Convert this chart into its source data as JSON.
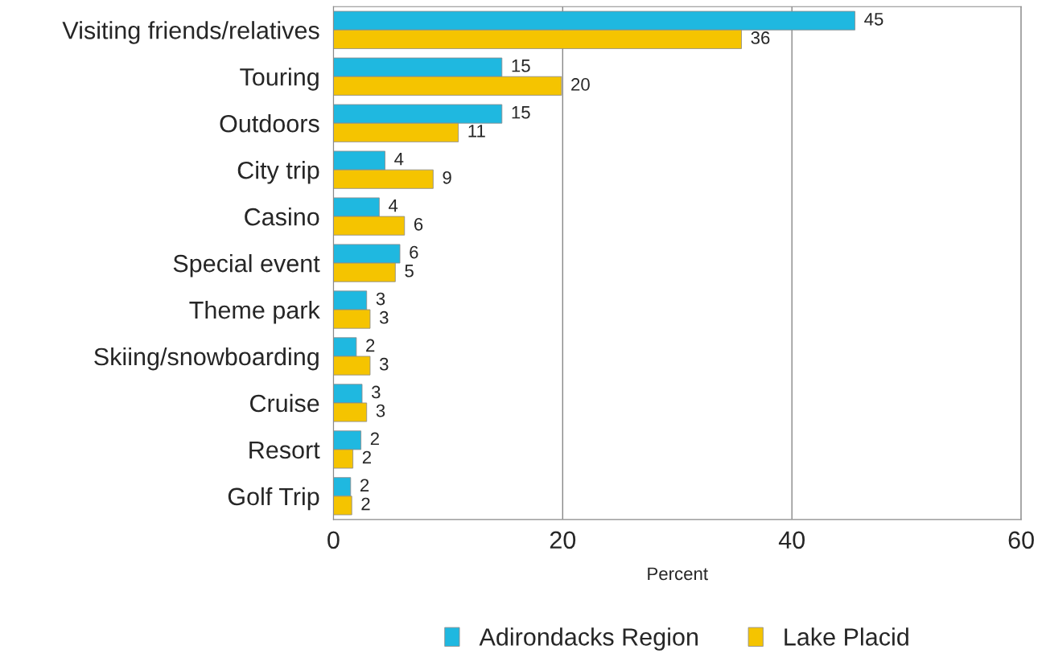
{
  "chart_data": {
    "type": "bar",
    "orientation": "horizontal",
    "xlabel": "Percent",
    "categories": [
      "Visiting friends/relatives",
      "Touring",
      "Outdoors",
      "City trip",
      "Casino",
      "Special event",
      "Theme park",
      "Skiing/snowboarding",
      "Cruise",
      "Resort",
      "Golf Trip"
    ],
    "series": [
      {
        "name": "Adirondacks Region",
        "color": "#1fb8e0",
        "values": [
          45.5,
          14.7,
          14.7,
          4.5,
          4.0,
          5.8,
          2.9,
          2.0,
          2.5,
          2.4,
          1.5
        ],
        "value_labels": [
          "45",
          "15",
          "15",
          "4",
          "4",
          "6",
          "3",
          "2",
          "3",
          "2",
          "2"
        ]
      },
      {
        "name": "Lake Placid",
        "color": "#f5c400",
        "values": [
          35.6,
          19.9,
          10.9,
          8.7,
          6.2,
          5.4,
          3.2,
          3.2,
          2.9,
          1.7,
          1.6
        ],
        "value_labels": [
          "36",
          "20",
          "11",
          "9",
          "6",
          "5",
          "3",
          "3",
          "3",
          "2",
          "2"
        ]
      }
    ],
    "xlim": [
      0,
      60
    ],
    "xticks": [
      0,
      20,
      40,
      60
    ],
    "grid": "x",
    "legend": "bottom"
  }
}
